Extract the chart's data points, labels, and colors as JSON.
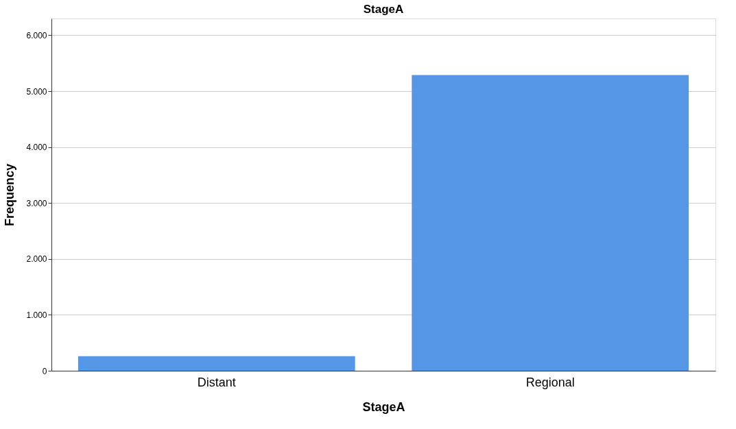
{
  "chart_data": {
    "type": "bar",
    "title": "StageA",
    "xlabel": "StageA",
    "ylabel": "Frequency",
    "categories": [
      "Distant",
      "Regional"
    ],
    "series": [
      {
        "color": "#5596e6",
        "values": [
          260,
          5290
        ]
      }
    ],
    "ylim": [
      0,
      6300
    ],
    "yticks": [
      0,
      {
        "value": 1000,
        "label": "1.000"
      },
      {
        "value": 2000,
        "label": "2.000"
      },
      {
        "value": 3000,
        "label": "3.000"
      },
      {
        "value": 4000,
        "label": "4.000"
      },
      {
        "value": 5000,
        "label": "5.000"
      },
      {
        "value": 6000,
        "label": "6.000"
      }
    ],
    "grid": "y",
    "legend": false
  }
}
